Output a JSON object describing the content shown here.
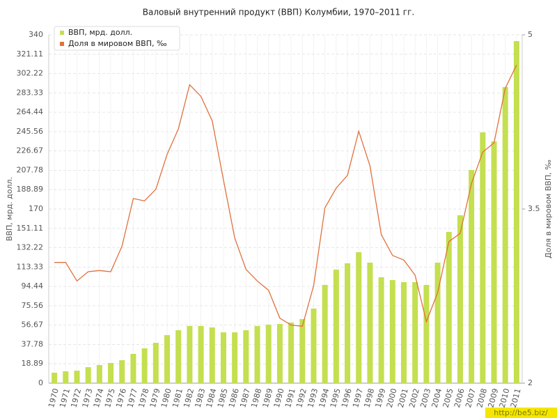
{
  "chart_data": {
    "type": "bar",
    "title": "Валовый внутренний продукт (ВВП) Колумбии, 1970–2011 гг.",
    "ylabel": "ВВП, мрд. долл.",
    "y2label": "Доля в мировом ВВП, ‰",
    "watermark": "http://be5.biz/",
    "categories": [
      "1970",
      "1971",
      "1972",
      "1973",
      "1974",
      "1975",
      "1976",
      "1977",
      "1978",
      "1979",
      "1980",
      "1981",
      "1982",
      "1983",
      "1984",
      "1985",
      "1986",
      "1987",
      "1988",
      "1989",
      "1990",
      "1991",
      "1992",
      "1993",
      "1994",
      "1995",
      "1996",
      "1997",
      "1998",
      "1999",
      "2000",
      "2001",
      "2002",
      "2003",
      "2004",
      "2005",
      "2006",
      "2007",
      "2008",
      "2009",
      "2010",
      "2011"
    ],
    "series": [
      {
        "name": "ВВП, мрд. долл.",
        "type": "bar",
        "color": "#c4df4f",
        "axis": "y",
        "values": [
          10.2,
          11.6,
          12.2,
          15.6,
          17.7,
          19.7,
          22.4,
          28.6,
          34,
          39.4,
          46.9,
          51.7,
          55.8,
          55.8,
          54.4,
          49.6,
          49.6,
          51.7,
          55.8,
          57.1,
          57.8,
          59.2,
          62.6,
          72.8,
          95.9,
          110.8,
          117,
          127.8,
          117.6,
          103.4,
          100.6,
          98.6,
          98.6,
          95.9,
          117.6,
          147.6,
          163.9,
          208.1,
          244.8,
          236,
          289,
          333.9
        ]
      },
      {
        "name": "Доля в мировом ВВП, ‰",
        "type": "line",
        "color": "#e0703c",
        "axis": "y2",
        "values": [
          3.04,
          3.04,
          2.88,
          2.96,
          2.97,
          2.96,
          3.18,
          3.59,
          3.57,
          3.67,
          3.97,
          4.19,
          4.57,
          4.47,
          4.26,
          3.75,
          3.25,
          2.98,
          2.88,
          2.8,
          2.56,
          2.5,
          2.49,
          2.84,
          3.51,
          3.68,
          3.79,
          4.17,
          3.87,
          3.28,
          3.1,
          3.06,
          2.93,
          2.53,
          2.78,
          3.22,
          3.29,
          3.72,
          3.99,
          4.07,
          4.54,
          4.74
        ]
      }
    ],
    "ylim": [
      0,
      340
    ],
    "yticks": [
      0,
      18.89,
      37.78,
      56.67,
      75.56,
      94.44,
      113.33,
      132.22,
      151.11,
      170,
      188.89,
      207.78,
      226.67,
      245.56,
      264.44,
      283.33,
      302.22,
      321.11,
      340
    ],
    "y2lim": [
      2,
      5
    ],
    "y2ticks": [
      2,
      3.5,
      5
    ],
    "grid": true,
    "legend": "top-left"
  }
}
